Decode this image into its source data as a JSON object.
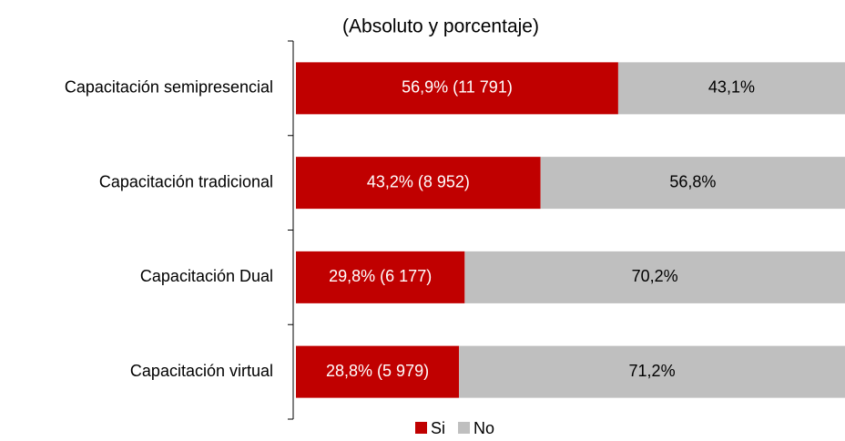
{
  "chart_data": {
    "type": "stacked_bar_horizontal",
    "subtitle": "(Absoluto y porcentaje)",
    "categories": [
      "Capacitación semipresencial",
      "Capacitación tradicional",
      "Capacitación Dual",
      "Capacitación virtual"
    ],
    "series": [
      {
        "name": "Si",
        "color": "#c00000",
        "values": [
          56.9,
          43.2,
          29.8,
          28.8
        ],
        "value_labels": [
          "56,9% (11 791)",
          "43,2% (8 952)",
          "29,8% (6 177)",
          "28,8% (5 979)"
        ]
      },
      {
        "name": "No",
        "color": "#bfbfbf",
        "values": [
          43.1,
          56.8,
          70.2,
          71.2
        ],
        "value_labels": [
          "43,1%",
          "56,8%",
          "70,2%",
          "71,2%"
        ]
      }
    ],
    "xlim": [
      0,
      100
    ]
  }
}
